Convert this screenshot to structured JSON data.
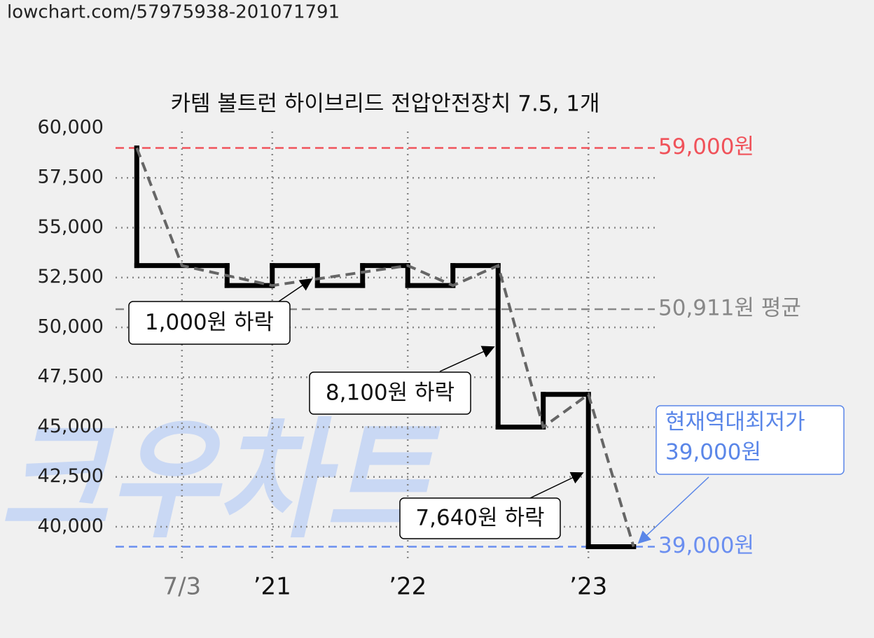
{
  "header": "lowchart.com/57975938-201071791",
  "watermark": "크우차트",
  "chart_data": {
    "type": "step",
    "title": "카템 볼트런 하이브리드 전압안전장치 7.5, 1개",
    "xlim": [
      -0.47,
      11.47
    ],
    "xticks": [
      {
        "value": 1,
        "label": "7/3"
      },
      {
        "value": 3,
        "label": "’21"
      },
      {
        "value": 6,
        "label": "’22"
      },
      {
        "value": 10,
        "label": "’23"
      }
    ],
    "ylim": [
      38350,
      60000
    ],
    "yticks": [
      {
        "value": 40000,
        "label": "40,000"
      },
      {
        "value": 42500,
        "label": "42,500"
      },
      {
        "value": 45000,
        "label": "45,000"
      },
      {
        "value": 47500,
        "label": "47,500"
      },
      {
        "value": 50000,
        "label": "50,000"
      },
      {
        "value": 52500,
        "label": "52,500"
      },
      {
        "value": 55000,
        "label": "55,000"
      },
      {
        "value": 57500,
        "label": "57,500"
      },
      {
        "value": 60000,
        "label": "60,000"
      }
    ],
    "grid": true,
    "series": [
      {
        "style": "step",
        "color": "#000000",
        "x": [
          0,
          0,
          2,
          3,
          4,
          5,
          6,
          7,
          8,
          9,
          10,
          11
        ],
        "values": [
          59000,
          53100,
          52100,
          53100,
          52100,
          53100,
          52100,
          53100,
          45000,
          46640,
          39000,
          39000
        ]
      },
      {
        "style": "dashed",
        "color": "#666666",
        "x": [
          0,
          1,
          3,
          6,
          7,
          8,
          9,
          10,
          11
        ],
        "values": [
          59000,
          53100,
          52100,
          53100,
          52100,
          53100,
          45000,
          46640,
          39000
        ]
      }
    ],
    "reference_lines": [
      {
        "value": 59000,
        "label": "59,000원",
        "color": "#f0525a"
      },
      {
        "value": 50911,
        "label": "50,911원 평균",
        "color": "#888888"
      },
      {
        "value": 39000,
        "label": "39,000원",
        "color": "#6b8ff0"
      }
    ],
    "annotations": [
      {
        "text": "1,000원 하락"
      },
      {
        "text": "8,100원 하락"
      },
      {
        "text": "7,640원 하락"
      }
    ],
    "callout": {
      "lines": [
        "현재역대최저가",
        "39,000원"
      ],
      "color": "#5a86e8"
    }
  }
}
